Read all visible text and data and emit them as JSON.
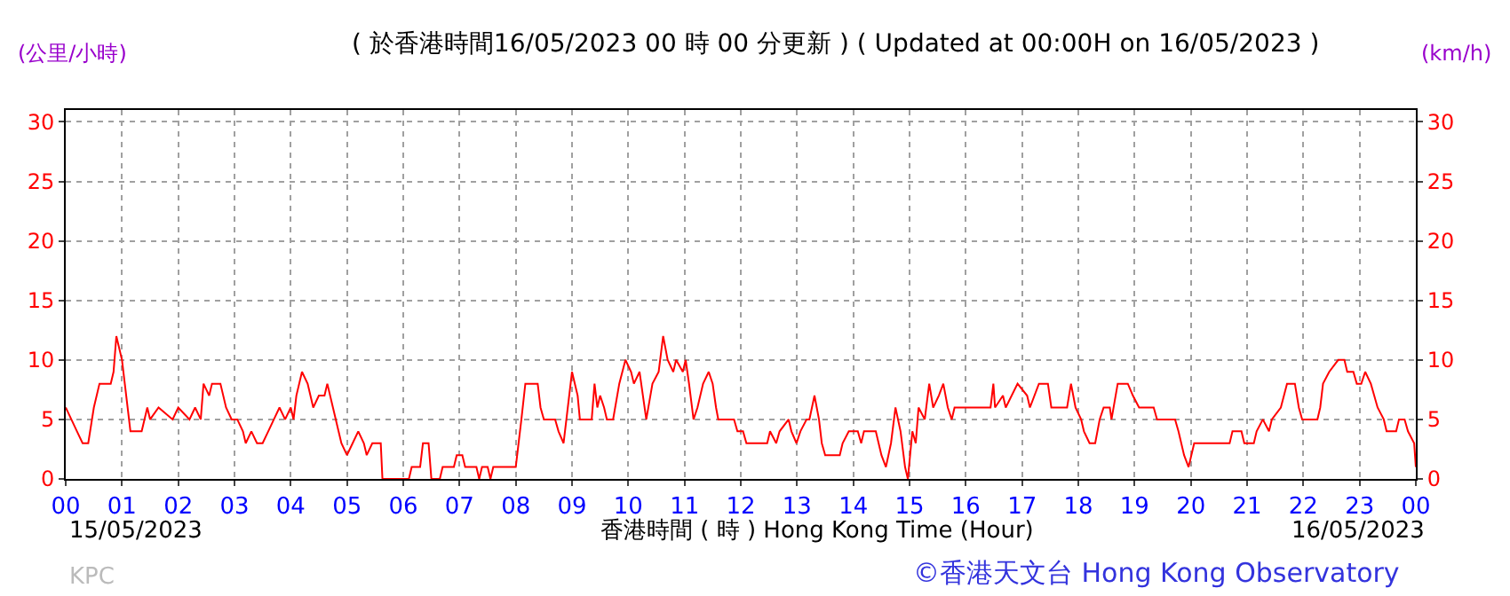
{
  "chart_data": {
    "type": "line",
    "title": "( 於香港時間16/05/2023 00 時 00 分更新 ) ( Updated at 00:00H on 16/05/2023 )",
    "ylabel": "(公里/小時)",
    "y2label": "(km/h)",
    "xlabel": "香港時間 ( 時 ) Hong Kong Time (Hour)",
    "annotations": [
      "15/05/2023",
      "16/05/2023",
      "KPC",
      "©香港天文台 Hong Kong Observatory"
    ],
    "x": [
      0,
      0.1,
      0.2,
      0.3,
      0.4,
      0.5,
      0.6,
      0.8,
      0.85,
      0.9,
      1.0,
      1.05,
      1.1,
      1.15,
      1.35,
      1.4,
      1.45,
      1.5,
      1.65,
      1.9,
      2.0,
      2.2,
      2.3,
      2.4,
      2.45,
      2.55,
      2.6,
      2.75,
      2.85,
      2.95,
      3.05,
      3.15,
      3.2,
      3.3,
      3.4,
      3.5,
      3.6,
      3.7,
      3.8,
      3.9,
      4.0,
      4.05,
      4.1,
      4.2,
      4.3,
      4.4,
      4.5,
      4.6,
      4.65,
      4.75,
      4.85,
      4.9,
      5.0,
      5.1,
      5.2,
      5.3,
      5.35,
      5.45,
      5.6,
      5.63,
      6.1,
      6.15,
      6.3,
      6.35,
      6.45,
      6.5,
      6.65,
      6.7,
      6.9,
      6.95,
      7.05,
      7.1,
      7.3,
      7.35,
      7.4,
      7.5,
      7.55,
      7.6,
      8.0,
      8.05,
      8.1,
      8.17,
      8.39,
      8.44,
      8.5,
      8.7,
      8.76,
      8.85,
      8.9,
      9.0,
      9.1,
      9.14,
      9.35,
      9.4,
      9.45,
      9.5,
      9.57,
      9.62,
      9.73,
      9.84,
      9.95,
      10.05,
      10.1,
      10.2,
      10.32,
      10.43,
      10.54,
      10.62,
      10.7,
      10.8,
      10.85,
      10.97,
      11.02,
      11.08,
      11.16,
      11.23,
      11.33,
      11.43,
      11.5,
      11.56,
      11.6,
      11.88,
      11.94,
      12.04,
      12.1,
      12.47,
      12.52,
      12.63,
      12.69,
      12.85,
      12.9,
      12.99,
      13.06,
      13.17,
      13.22,
      13.31,
      13.39,
      13.44,
      13.5,
      13.76,
      13.81,
      13.92,
      14.08,
      14.14,
      14.19,
      14.4,
      14.5,
      14.58,
      14.67,
      14.75,
      14.84,
      14.92,
      14.97,
      15.05,
      15.11,
      15.16,
      15.27,
      15.35,
      15.42,
      15.52,
      15.6,
      15.68,
      15.75,
      15.8,
      16.44,
      16.49,
      16.52,
      16.66,
      16.71,
      16.92,
      17.09,
      17.14,
      17.3,
      17.46,
      17.52,
      17.8,
      17.87,
      17.95,
      18.05,
      18.1,
      18.2,
      18.3,
      18.38,
      18.45,
      18.56,
      18.59,
      18.7,
      18.88,
      18.97,
      19.08,
      19.34,
      19.4,
      19.72,
      19.78,
      19.88,
      19.96,
      20.06,
      20.69,
      20.74,
      20.9,
      20.95,
      21.12,
      21.17,
      21.28,
      21.39,
      21.44,
      21.6,
      21.71,
      21.85,
      21.92,
      21.98,
      22.25,
      22.3,
      22.35,
      22.46,
      22.62,
      22.73,
      22.78,
      22.89,
      22.95,
      23.03,
      23.1,
      23.2,
      23.32,
      23.43,
      23.48,
      23.65,
      23.7,
      23.8,
      23.86,
      23.97,
      24.0
    ],
    "series": [
      {
        "color": "#ff0000",
        "values": [
          6,
          5,
          4,
          3,
          3,
          6,
          8,
          8,
          9,
          12,
          10,
          8,
          6,
          4,
          4,
          5,
          6,
          5,
          6,
          5,
          6,
          5,
          6,
          5,
          8,
          7,
          8,
          8,
          6,
          5,
          5,
          4,
          3,
          4,
          3,
          3,
          4,
          5,
          6,
          5,
          6,
          5,
          7,
          9,
          8,
          6,
          7,
          7,
          8,
          6,
          4,
          3,
          2,
          3,
          4,
          3,
          2,
          3,
          3,
          0,
          0,
          1,
          1,
          3,
          3,
          0,
          0,
          1,
          1,
          2,
          2,
          1,
          1,
          0,
          1,
          1,
          0,
          1,
          1,
          3,
          5,
          8,
          8,
          6,
          5,
          5,
          4,
          3,
          5,
          9,
          7,
          5,
          5,
          8,
          6,
          7,
          6,
          5,
          5,
          8,
          10,
          9,
          8,
          9,
          5,
          8,
          9,
          12,
          10,
          9,
          10,
          9,
          10,
          8,
          5,
          6,
          8,
          9,
          8,
          6,
          5,
          5,
          4,
          4,
          3,
          3,
          4,
          3,
          4,
          5,
          4,
          3,
          4,
          5,
          5,
          7,
          5,
          3,
          2,
          2,
          3,
          4,
          4,
          3,
          4,
          4,
          2,
          1,
          3,
          6,
          4,
          1,
          0,
          4,
          3,
          6,
          5,
          8,
          6,
          7,
          8,
          6,
          5,
          6,
          6,
          8,
          6,
          7,
          6,
          8,
          7,
          6,
          8,
          8,
          6,
          6,
          8,
          6,
          5,
          4,
          3,
          3,
          5,
          6,
          6,
          5,
          8,
          8,
          7,
          6,
          6,
          5,
          5,
          4,
          2,
          1,
          3,
          3,
          4,
          4,
          3,
          3,
          4,
          5,
          4,
          5,
          6,
          8,
          8,
          6,
          5,
          5,
          6,
          8,
          9,
          10,
          10,
          9,
          9,
          8,
          8,
          9,
          8,
          6,
          5,
          4,
          4,
          5,
          5,
          4,
          3,
          1
        ]
      }
    ],
    "xlim": [
      0,
      24
    ],
    "xticks": [
      {
        "value": 0,
        "label": "00"
      },
      {
        "value": 1,
        "label": "01"
      },
      {
        "value": 2,
        "label": "02"
      },
      {
        "value": 3,
        "label": "03"
      },
      {
        "value": 4,
        "label": "04"
      },
      {
        "value": 5,
        "label": "05"
      },
      {
        "value": 6,
        "label": "06"
      },
      {
        "value": 7,
        "label": "07"
      },
      {
        "value": 8,
        "label": "08"
      },
      {
        "value": 9,
        "label": "09"
      },
      {
        "value": 10,
        "label": "10"
      },
      {
        "value": 11,
        "label": "11"
      },
      {
        "value": 12,
        "label": "12"
      },
      {
        "value": 13,
        "label": "13"
      },
      {
        "value": 14,
        "label": "14"
      },
      {
        "value": 15,
        "label": "15"
      },
      {
        "value": 16,
        "label": "16"
      },
      {
        "value": 17,
        "label": "17"
      },
      {
        "value": 18,
        "label": "18"
      },
      {
        "value": 19,
        "label": "19"
      },
      {
        "value": 20,
        "label": "20"
      },
      {
        "value": 21,
        "label": "21"
      },
      {
        "value": 22,
        "label": "22"
      },
      {
        "value": 23,
        "label": "23"
      },
      {
        "value": 24,
        "label": "00"
      }
    ],
    "ylim": [
      0,
      31
    ],
    "yticks": [
      0,
      5,
      10,
      15,
      20,
      25,
      30
    ],
    "y2lim": [
      0,
      31
    ],
    "y2ticks": [
      0,
      5,
      10,
      15,
      20,
      25,
      30
    ],
    "grid": true,
    "marker": "none",
    "line_style": "solid"
  }
}
